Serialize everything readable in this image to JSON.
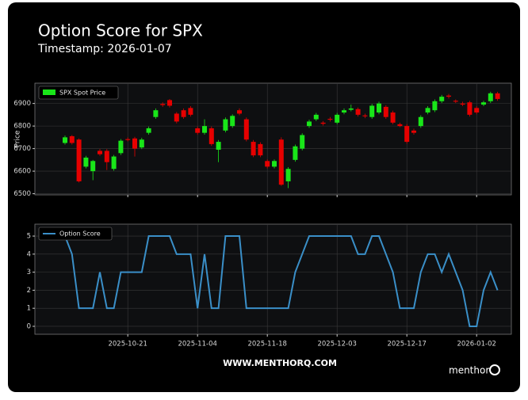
{
  "title": "Option Score for SPX",
  "subtitle": "Timestamp: 2026-01-07",
  "footer": "WWW.MENTHORQ.COM",
  "brand": "menthor",
  "chart_data": [
    {
      "type": "candlestick",
      "ylabel": "Price",
      "legend": "upper left",
      "grid": true,
      "series": [
        {
          "name": "SPX Spot Price",
          "up_color": "#19e619",
          "down_color": "#e60000",
          "open": [
            6725,
            6755,
            6740,
            6620,
            6600,
            6690,
            6690,
            6610,
            6680,
            6742,
            6745,
            6705,
            6770,
            6840,
            6898,
            6915,
            6855,
            6870,
            6880,
            6790,
            6770,
            6790,
            6695,
            6780,
            6800,
            6870,
            6830,
            6730,
            6720,
            6645,
            6620,
            6740,
            6555,
            6650,
            6700,
            6800,
            6830,
            6815,
            6832,
            6815,
            6860,
            6872,
            6875,
            6847,
            6840,
            6860,
            6885,
            6860,
            6808,
            6800,
            6780,
            6800,
            6860,
            6870,
            6910,
            6935,
            6912,
            6900,
            6905,
            6880,
            6895,
            6910,
            6945
          ],
          "high": [
            6758,
            6760,
            6745,
            6668,
            6650,
            6698,
            6698,
            6672,
            6742,
            6750,
            6752,
            6748,
            6798,
            6878,
            6905,
            6920,
            6862,
            6878,
            6888,
            6798,
            6830,
            6798,
            6738,
            6838,
            6852,
            6878,
            6838,
            6738,
            6728,
            6652,
            6652,
            6750,
            6618,
            6718,
            6768,
            6828,
            6858,
            6822,
            6840,
            6858,
            6878,
            6895,
            6882,
            6855,
            6898,
            6908,
            6892,
            6868,
            6815,
            6808,
            6788,
            6848,
            6888,
            6918,
            6938,
            6942,
            6918,
            6908,
            6912,
            6888,
            6912,
            6952,
            6952
          ],
          "low": [
            6718,
            6718,
            6550,
            6612,
            6560,
            6668,
            6605,
            6602,
            6672,
            6732,
            6665,
            6698,
            6762,
            6832,
            6885,
            6882,
            6812,
            6832,
            6842,
            6762,
            6762,
            6712,
            6640,
            6772,
            6792,
            6848,
            6732,
            6662,
            6662,
            6612,
            6612,
            6535,
            6525,
            6642,
            6692,
            6792,
            6822,
            6802,
            6820,
            6808,
            6852,
            6865,
            6842,
            6835,
            6832,
            6852,
            6832,
            6808,
            6795,
            6722,
            6762,
            6792,
            6852,
            6862,
            6902,
            6922,
            6902,
            6888,
            6842,
            6852,
            6888,
            6902,
            6912
          ],
          "close": [
            6750,
            6725,
            6555,
            6660,
            6645,
            6675,
            6640,
            6665,
            6735,
            6738,
            6700,
            6740,
            6790,
            6870,
            6893,
            6890,
            6820,
            6840,
            6850,
            6770,
            6800,
            6720,
            6730,
            6830,
            6845,
            6855,
            6740,
            6670,
            6670,
            6620,
            6645,
            6540,
            6610,
            6710,
            6760,
            6820,
            6850,
            6810,
            6828,
            6850,
            6870,
            6878,
            6850,
            6843,
            6890,
            6900,
            6840,
            6815,
            6800,
            6730,
            6770,
            6840,
            6880,
            6910,
            6930,
            6930,
            6908,
            6895,
            6850,
            6860,
            6905,
            6945,
            6920
          ]
        }
      ],
      "x": [
        "2025-10-08",
        "2025-10-09",
        "2025-10-10",
        "2025-10-13",
        "2025-10-14",
        "2025-10-15",
        "2025-10-16",
        "2025-10-17",
        "2025-10-20",
        "2025-10-21",
        "2025-10-22",
        "2025-10-23",
        "2025-10-24",
        "2025-10-27",
        "2025-10-28",
        "2025-10-29",
        "2025-10-30",
        "2025-10-31",
        "2025-11-03",
        "2025-11-04",
        "2025-11-05",
        "2025-11-06",
        "2025-11-07",
        "2025-11-10",
        "2025-11-11",
        "2025-11-12",
        "2025-11-13",
        "2025-11-14",
        "2025-11-17",
        "2025-11-18",
        "2025-11-19",
        "2025-11-20",
        "2025-11-21",
        "2025-11-24",
        "2025-11-25",
        "2025-11-26",
        "2025-11-28",
        "2025-12-01",
        "2025-12-02",
        "2025-12-03",
        "2025-12-04",
        "2025-12-05",
        "2025-12-08",
        "2025-12-09",
        "2025-12-10",
        "2025-12-11",
        "2025-12-12",
        "2025-12-15",
        "2025-12-16",
        "2025-12-17",
        "2025-12-18",
        "2025-12-19",
        "2025-12-22",
        "2025-12-23",
        "2025-12-24",
        "2025-12-26",
        "2025-12-29",
        "2025-12-30",
        "2025-12-31",
        "2026-01-02",
        "2026-01-05",
        "2026-01-06",
        "2026-01-07"
      ],
      "xticks": [
        "2025-10-21",
        "2025-11-04",
        "2025-11-18",
        "2025-12-03",
        "2025-12-17",
        "2026-01-02"
      ],
      "ylim": [
        6495,
        6990
      ],
      "yticks": [
        6500,
        6600,
        6700,
        6800,
        6900
      ]
    },
    {
      "type": "line",
      "legend": "upper left",
      "grid": true,
      "series": [
        {
          "name": "Option Score",
          "color": "#3a8fc8",
          "values": [
            5,
            4,
            1,
            1,
            1,
            3,
            1,
            1,
            3,
            3,
            3,
            3,
            5,
            5,
            5,
            5,
            4,
            4,
            4,
            1,
            4,
            1,
            1,
            5,
            5,
            5,
            1,
            1,
            1,
            1,
            1,
            1,
            1,
            3,
            4,
            5,
            5,
            5,
            5,
            5,
            5,
            5,
            4,
            4,
            5,
            5,
            4,
            3,
            1,
            1,
            1,
            3,
            4,
            4,
            3,
            4,
            3,
            2,
            0,
            0,
            2,
            3,
            2
          ]
        }
      ],
      "x": [
        "2025-10-08",
        "2025-10-09",
        "2025-10-10",
        "2025-10-13",
        "2025-10-14",
        "2025-10-15",
        "2025-10-16",
        "2025-10-17",
        "2025-10-20",
        "2025-10-21",
        "2025-10-22",
        "2025-10-23",
        "2025-10-24",
        "2025-10-27",
        "2025-10-28",
        "2025-10-29",
        "2025-10-30",
        "2025-10-31",
        "2025-11-03",
        "2025-11-04",
        "2025-11-05",
        "2025-11-06",
        "2025-11-07",
        "2025-11-10",
        "2025-11-11",
        "2025-11-12",
        "2025-11-13",
        "2025-11-14",
        "2025-11-17",
        "2025-11-18",
        "2025-11-19",
        "2025-11-20",
        "2025-11-21",
        "2025-11-24",
        "2025-11-25",
        "2025-11-26",
        "2025-11-28",
        "2025-12-01",
        "2025-12-02",
        "2025-12-03",
        "2025-12-04",
        "2025-12-05",
        "2025-12-08",
        "2025-12-09",
        "2025-12-10",
        "2025-12-11",
        "2025-12-12",
        "2025-12-15",
        "2025-12-16",
        "2025-12-17",
        "2025-12-18",
        "2025-12-19",
        "2025-12-22",
        "2025-12-23",
        "2025-12-24",
        "2025-12-26",
        "2025-12-29",
        "2025-12-30",
        "2025-12-31",
        "2026-01-02",
        "2026-01-05",
        "2026-01-06",
        "2026-01-07"
      ],
      "xticks": [
        "2025-10-21",
        "2025-11-04",
        "2025-11-18",
        "2025-12-03",
        "2025-12-17",
        "2026-01-02"
      ],
      "ylim": [
        -0.44,
        5.66
      ],
      "yticks": [
        0,
        1,
        2,
        3,
        4,
        5
      ]
    }
  ]
}
